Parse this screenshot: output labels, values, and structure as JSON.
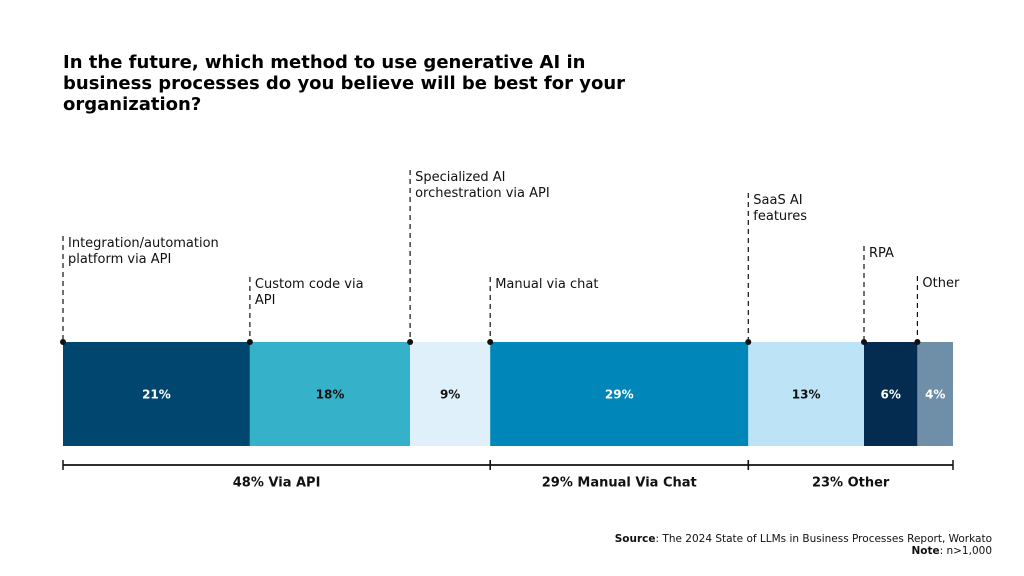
{
  "chart_data": {
    "type": "stacked_bar",
    "title": "In the future, which method to use generative AI in business processes do you believe will be best for your organization?",
    "categories": [
      "Integration/automation platform via API",
      "Custom code via API",
      "Specialized AI orchestration via API",
      "Manual via chat",
      "SaaS AI features",
      "RPA",
      "Other"
    ],
    "values": [
      21,
      18,
      9,
      29,
      13,
      6,
      4
    ],
    "value_labels": [
      "21%",
      "18%",
      "9%",
      "29%",
      "13%",
      "6%",
      "4%"
    ],
    "colors": [
      "#00466e",
      "#36b1ca",
      "#dff0fa",
      "#0086b9",
      "#bde3f7",
      "#042b50",
      "#6f8fa9"
    ],
    "xlim": [
      0,
      100
    ],
    "groups": [
      {
        "label": "48% Via API",
        "value": 48
      },
      {
        "label": "29% Manual Via Chat",
        "value": 29
      },
      {
        "label": "23% Other",
        "value": 23
      }
    ],
    "source": {
      "label": "Source",
      "text": ": The 2024 State of LLMs in Business Processes Report, Workato"
    },
    "note": {
      "label": "Note",
      "text": ": n>1,000"
    }
  }
}
